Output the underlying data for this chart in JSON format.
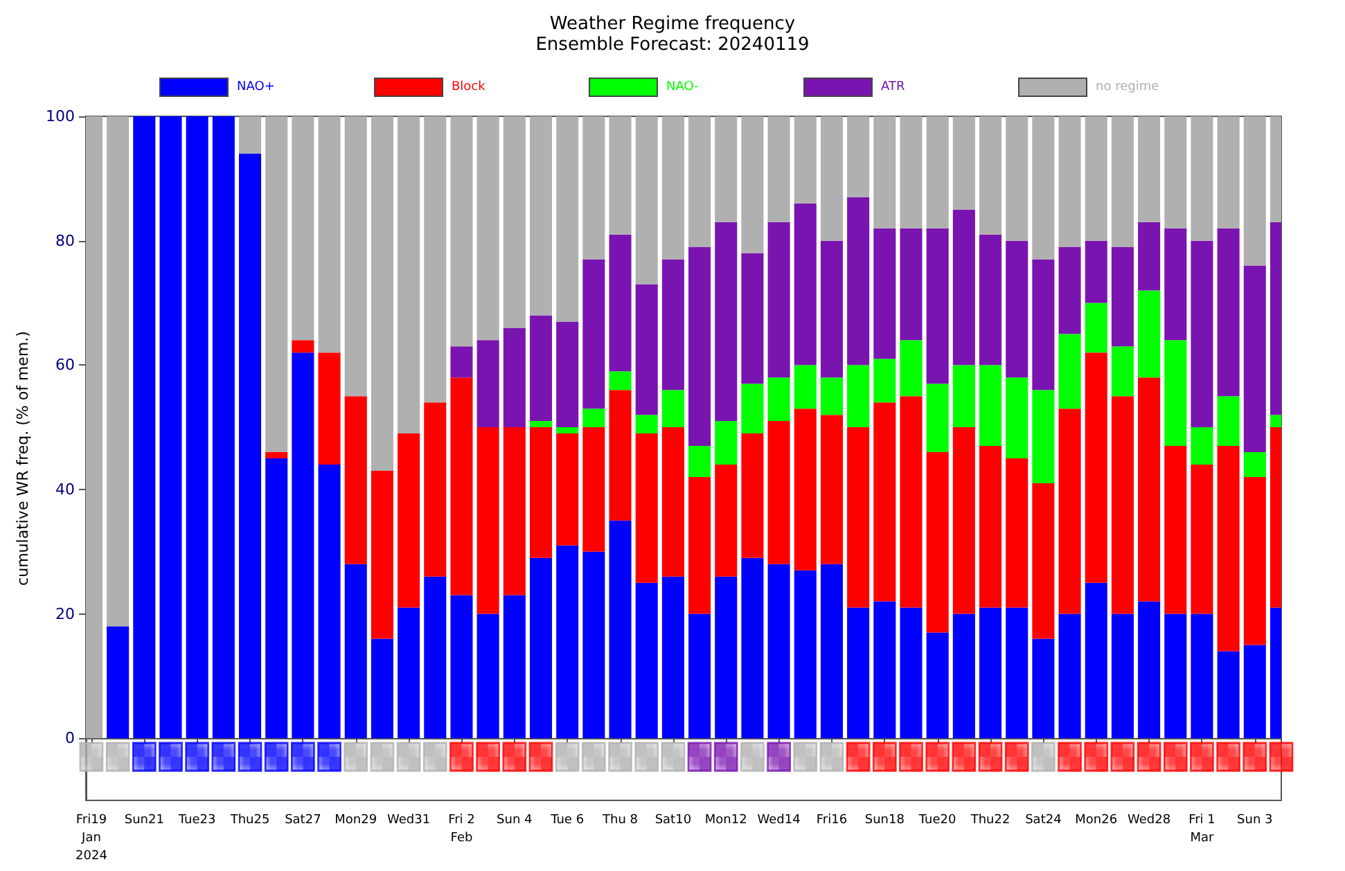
{
  "chart_data": {
    "type": "bar",
    "title": "Weather Regime frequency",
    "subtitle": "Ensemble Forecast: 20240119",
    "ylabel": "cumulative WR freq. (% of mem.)",
    "x": [
      "2024-01-19",
      "2024-01-20",
      "2024-01-21",
      "2024-01-22",
      "2024-01-23",
      "2024-01-24",
      "2024-01-25",
      "2024-01-26",
      "2024-01-27",
      "2024-01-28",
      "2024-01-29",
      "2024-01-30",
      "2024-01-31",
      "2024-02-01",
      "2024-02-02",
      "2024-02-03",
      "2024-02-04",
      "2024-02-05",
      "2024-02-06",
      "2024-02-07",
      "2024-02-08",
      "2024-02-09",
      "2024-02-10",
      "2024-02-11",
      "2024-02-12",
      "2024-02-13",
      "2024-02-14",
      "2024-02-15",
      "2024-02-16",
      "2024-02-17",
      "2024-02-18",
      "2024-02-19",
      "2024-02-20",
      "2024-02-21",
      "2024-02-22",
      "2024-02-23",
      "2024-02-24",
      "2024-02-25",
      "2024-02-26",
      "2024-02-27",
      "2024-02-28",
      "2024-02-29",
      "2024-03-01",
      "2024-03-02",
      "2024-03-03",
      "2024-03-04"
    ],
    "xlim": [
      "2024-01-18T19:00",
      "2024-03-04T00:00"
    ],
    "xticks": [
      {
        "value": "2024-01-19",
        "label": "Fri19\nJan\n2024"
      },
      {
        "value": "2024-01-21",
        "label": "Sun21"
      },
      {
        "value": "2024-01-23",
        "label": "Tue23"
      },
      {
        "value": "2024-01-25",
        "label": "Thu25"
      },
      {
        "value": "2024-01-27",
        "label": "Sat27"
      },
      {
        "value": "2024-01-29",
        "label": "Mon29"
      },
      {
        "value": "2024-01-31",
        "label": "Wed31"
      },
      {
        "value": "2024-02-02",
        "label": "Fri 2\nFeb"
      },
      {
        "value": "2024-02-04",
        "label": "Sun 4"
      },
      {
        "value": "2024-02-06",
        "label": "Tue 6"
      },
      {
        "value": "2024-02-08",
        "label": "Thu 8"
      },
      {
        "value": "2024-02-10",
        "label": "Sat10"
      },
      {
        "value": "2024-02-12",
        "label": "Mon12"
      },
      {
        "value": "2024-02-14",
        "label": "Wed14"
      },
      {
        "value": "2024-02-16",
        "label": "Fri16"
      },
      {
        "value": "2024-02-18",
        "label": "Sun18"
      },
      {
        "value": "2024-02-20",
        "label": "Tue20"
      },
      {
        "value": "2024-02-22",
        "label": "Thu22"
      },
      {
        "value": "2024-02-24",
        "label": "Sat24"
      },
      {
        "value": "2024-02-26",
        "label": "Mon26"
      },
      {
        "value": "2024-02-28",
        "label": "Wed28"
      },
      {
        "value": "2024-03-01",
        "label": "Fri 1\nMar"
      },
      {
        "value": "2024-03-03",
        "label": "Sun 3"
      }
    ],
    "ylim": [
      -10,
      100
    ],
    "yticks": [
      0,
      20,
      40,
      60,
      80,
      100
    ],
    "stacked": true,
    "legend": "top",
    "series": [
      {
        "name": "NAO+",
        "color": "#0000ff",
        "values": [
          0,
          18,
          100,
          100,
          100,
          100,
          94,
          45,
          62,
          44,
          28,
          16,
          21,
          26,
          23,
          20,
          23,
          29,
          31,
          30,
          35,
          25,
          26,
          20,
          26,
          29,
          28,
          27,
          28,
          21,
          22,
          21,
          17,
          20,
          21,
          21,
          16,
          20,
          25,
          20,
          22,
          20,
          20,
          14,
          15,
          21
        ]
      },
      {
        "name": "Block",
        "color": "#ff0000",
        "values": [
          0,
          0,
          0,
          0,
          0,
          0,
          0,
          1,
          2,
          18,
          27,
          27,
          28,
          28,
          35,
          30,
          27,
          21,
          18,
          20,
          21,
          24,
          24,
          22,
          18,
          20,
          23,
          26,
          24,
          29,
          32,
          34,
          29,
          30,
          26,
          24,
          25,
          33,
          37,
          35,
          36,
          27,
          24,
          33,
          27,
          29
        ]
      },
      {
        "name": "NAO-",
        "color": "#00ff00",
        "values": [
          0,
          0,
          0,
          0,
          0,
          0,
          0,
          0,
          0,
          0,
          0,
          0,
          0,
          0,
          0,
          0,
          0,
          1,
          1,
          3,
          3,
          3,
          6,
          5,
          7,
          8,
          7,
          7,
          6,
          10,
          7,
          9,
          11,
          10,
          13,
          13,
          15,
          12,
          8,
          8,
          14,
          17,
          6,
          8,
          4,
          2
        ]
      },
      {
        "name": "ATR",
        "color": "#7a14b0",
        "values": [
          0,
          0,
          0,
          0,
          0,
          0,
          0,
          0,
          0,
          0,
          0,
          0,
          0,
          0,
          5,
          14,
          16,
          17,
          17,
          24,
          22,
          21,
          21,
          32,
          32,
          21,
          25,
          26,
          22,
          27,
          21,
          18,
          25,
          25,
          21,
          22,
          21,
          14,
          10,
          16,
          11,
          18,
          30,
          27,
          30,
          31
        ]
      },
      {
        "name": "no regime",
        "color": "#b0b0b0",
        "values": [
          100,
          82,
          0,
          0,
          0,
          0,
          6,
          54,
          36,
          38,
          45,
          57,
          51,
          46,
          37,
          36,
          34,
          32,
          33,
          23,
          19,
          27,
          23,
          21,
          17,
          22,
          17,
          14,
          20,
          13,
          18,
          18,
          18,
          15,
          19,
          20,
          23,
          21,
          20,
          21,
          17,
          18,
          20,
          18,
          24,
          17
        ]
      },
      {
        "type": "scatter",
        "marker": "square",
        "values": [
          -3,
          -3,
          -3,
          -3,
          -3,
          -3,
          -3,
          -3,
          -3,
          -3,
          -3,
          -3,
          -3,
          -3,
          -3,
          -3,
          -3,
          -3,
          -3,
          -3,
          -3,
          -3,
          -3,
          -3,
          -3,
          -3,
          -3,
          -3,
          -3,
          -3,
          -3,
          -3,
          -3,
          -3,
          -3,
          -3,
          -3,
          -3,
          -3,
          -3,
          -3,
          -3,
          -3,
          -3,
          -3,
          -3
        ],
        "colors": [
          "#b0b0b0",
          "#b0b0b0",
          "#0000ff",
          "#0000ff",
          "#0000ff",
          "#0000ff",
          "#0000ff",
          "#0000ff",
          "#0000ff",
          "#0000ff",
          "#b0b0b0",
          "#b0b0b0",
          "#b0b0b0",
          "#b0b0b0",
          "#ff0000",
          "#ff0000",
          "#ff0000",
          "#ff0000",
          "#b0b0b0",
          "#b0b0b0",
          "#b0b0b0",
          "#b0b0b0",
          "#b0b0b0",
          "#7a14b0",
          "#7a14b0",
          "#b0b0b0",
          "#7a14b0",
          "#b0b0b0",
          "#b0b0b0",
          "#ff0000",
          "#ff0000",
          "#ff0000",
          "#ff0000",
          "#ff0000",
          "#ff0000",
          "#ff0000",
          "#b0b0b0",
          "#ff0000",
          "#ff0000",
          "#ff0000",
          "#ff0000",
          "#ff0000",
          "#ff0000",
          "#ff0000",
          "#ff0000",
          "#ff0000"
        ]
      }
    ]
  }
}
